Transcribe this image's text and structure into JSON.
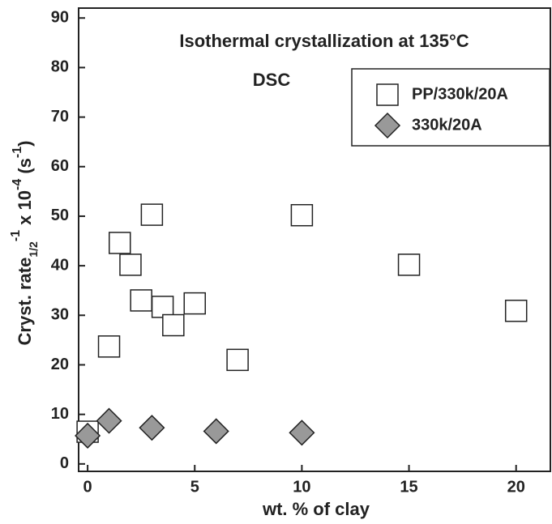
{
  "chart_data": {
    "type": "scatter",
    "title": "Isothermal crystallization at 135°C",
    "annotations": [
      "DSC"
    ],
    "x_label": "wt. % of clay",
    "y_label": [
      "Cryst. rate",
      "1/2",
      "-1",
      " x 10",
      "-4",
      " (s",
      "-1",
      ")"
    ],
    "xlim": [
      -0.42,
      21.6
    ],
    "ylim": [
      -1.5,
      92
    ],
    "xticks": [
      0,
      5,
      10,
      15,
      20
    ],
    "yticks": [
      0,
      10,
      20,
      30,
      40,
      50,
      60,
      70,
      80,
      90
    ],
    "legend": "upper right",
    "series": [
      {
        "name": "PP/330k/20A",
        "marker": "square",
        "color": "#ffffff",
        "x": [
          0,
          1,
          1.5,
          2,
          2.5,
          3,
          3.5,
          4,
          5,
          7,
          10,
          15,
          20
        ],
        "values": [
          6.5,
          23.7,
          44.6,
          40.2,
          33,
          50.3,
          31.7,
          28,
          32.4,
          21,
          50.2,
          40.2,
          30.9
        ]
      },
      {
        "name": "330k/20A",
        "marker": "diamond",
        "color": "#999999",
        "x": [
          0,
          1,
          3,
          6,
          10
        ],
        "values": [
          5.7,
          8.7,
          7.3,
          6.6,
          6.3
        ]
      }
    ]
  }
}
